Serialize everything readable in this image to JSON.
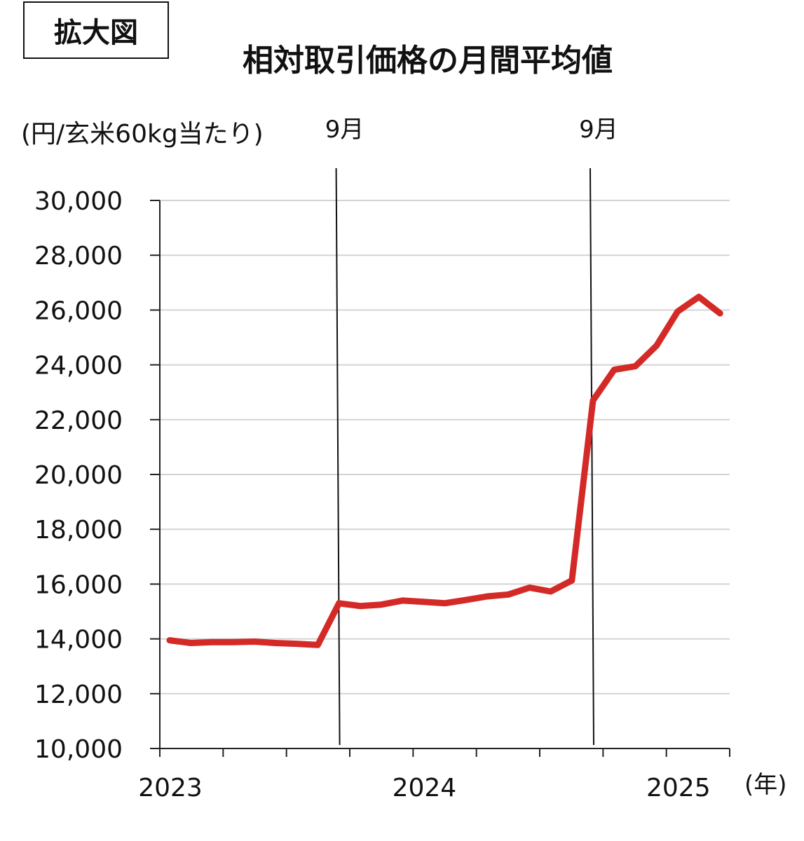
{
  "badge": "拡大図",
  "chart_data": {
    "type": "line",
    "title": "相対取引価格の月間平均値",
    "ylabel": "(円/玄米60kg当たり)",
    "xlabel": "",
    "x_unit": "(年)",
    "ylim": [
      10000,
      30000
    ],
    "yticks": [
      10000,
      12000,
      14000,
      16000,
      18000,
      20000,
      22000,
      24000,
      26000,
      28000,
      30000
    ],
    "ytick_labels": [
      "10,000",
      "12,000",
      "14,000",
      "16,000",
      "18,000",
      "20,000",
      "22,000",
      "24,000",
      "26,000",
      "28,000",
      "30,000"
    ],
    "year_labels": [
      "2023",
      "2024",
      "2025"
    ],
    "grid": true,
    "line_color": "#d42a27",
    "vertical_markers": [
      {
        "label": "9月",
        "month": "2023-09"
      },
      {
        "label": "9月",
        "month": "2024-09"
      }
    ],
    "series": [
      {
        "x": [
          "2023-01",
          "2023-02",
          "2023-03",
          "2023-04",
          "2023-05",
          "2023-06",
          "2023-07",
          "2023-08",
          "2023-09",
          "2023-10",
          "2023-11",
          "2023-12",
          "2024-01",
          "2024-02",
          "2024-03",
          "2024-04",
          "2024-05",
          "2024-06",
          "2024-07",
          "2024-08",
          "2024-09",
          "2024-10",
          "2024-11",
          "2024-12",
          "2025-01",
          "2025-02",
          "2025-03"
        ],
        "values": [
          13950,
          13850,
          13880,
          13880,
          13900,
          13850,
          13820,
          13780,
          15300,
          15200,
          15250,
          15400,
          15350,
          15300,
          15420,
          15550,
          15620,
          15870,
          15730,
          16130,
          22700,
          23820,
          23950,
          24700,
          25950,
          26480,
          25880
        ]
      }
    ]
  }
}
